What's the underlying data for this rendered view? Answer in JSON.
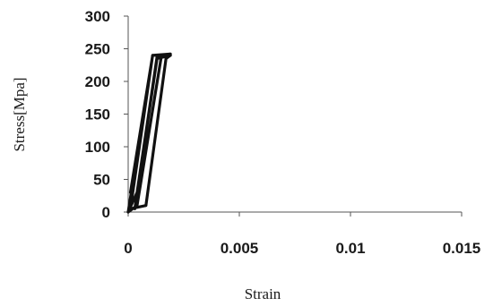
{
  "chart_data": {
    "type": "line",
    "title": "",
    "xlabel": "Strain",
    "ylabel": "Stress[Mpa]",
    "xlim": [
      0,
      0.015
    ],
    "ylim": [
      0,
      300
    ],
    "x_ticks": [
      0,
      0.005,
      0.01,
      0.015
    ],
    "x_tick_labels": [
      "0",
      "0.005",
      "0.01",
      "0.015"
    ],
    "y_ticks": [
      0,
      50,
      100,
      150,
      200,
      250,
      300
    ],
    "y_tick_labels": [
      "0",
      "50",
      "100",
      "150",
      "200",
      "250",
      "300"
    ],
    "grid": false,
    "legend": "none",
    "line_color": "#111111",
    "series": [
      {
        "x": [
          0.0,
          0.0011,
          0.0019,
          0.0015,
          0.0004,
          0.0,
          0.0004,
          0.0013,
          0.0019,
          0.0013,
          0.0003,
          0.0003,
          0.0013,
          0.0019,
          0.0011,
          0.0001,
          0.0008,
          0.0017,
          0.0019,
          0.0011,
          0.0001
        ],
        "y": [
          0,
          240,
          242,
          240,
          10,
          0,
          30,
          237,
          240,
          238,
          5,
          5,
          235,
          240,
          240,
          5,
          10,
          235,
          240,
          240,
          30
        ]
      }
    ]
  }
}
